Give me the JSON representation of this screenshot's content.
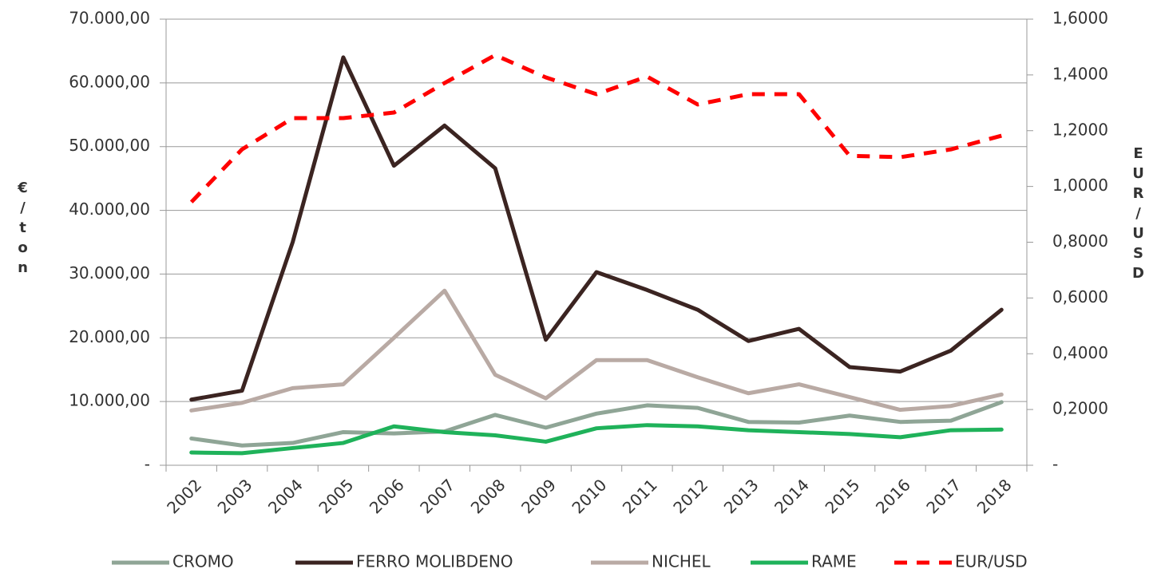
{
  "chart_data": {
    "type": "line",
    "categories": [
      "2002",
      "2003",
      "2004",
      "2005",
      "2006",
      "2007",
      "2008",
      "2009",
      "2010",
      "2011",
      "2012",
      "2013",
      "2014",
      "2015",
      "2016",
      "2017",
      "2018"
    ],
    "ylabel": "€/ton",
    "y2label": "EUR/USD",
    "ylim": [
      0,
      70000
    ],
    "yticks": [
      {
        "value": 0,
        "label": "-"
      },
      {
        "value": 10000,
        "label": "10.000,00"
      },
      {
        "value": 20000,
        "label": "20.000,00"
      },
      {
        "value": 30000,
        "label": "30.000,00"
      },
      {
        "value": 40000,
        "label": "40.000,00"
      },
      {
        "value": 50000,
        "label": "50.000,00"
      },
      {
        "value": 60000,
        "label": "60.000,00"
      },
      {
        "value": 70000,
        "label": "70.000,00"
      }
    ],
    "y2lim": [
      0,
      1.6
    ],
    "y2ticks": [
      {
        "value": 0,
        "label": "-"
      },
      {
        "value": 0.2,
        "label": "0,2000"
      },
      {
        "value": 0.4,
        "label": "0,4000"
      },
      {
        "value": 0.6,
        "label": "0,6000"
      },
      {
        "value": 0.8,
        "label": "0,8000"
      },
      {
        "value": 1.0,
        "label": "1,0000"
      },
      {
        "value": 1.2,
        "label": "1,2000"
      },
      {
        "value": 1.4,
        "label": "1,4000"
      },
      {
        "value": 1.6,
        "label": "1,6000"
      }
    ],
    "grid": true,
    "legend": "bottom",
    "series": [
      {
        "name": "CROMO",
        "color": "#8fa596",
        "values": [
          4200,
          3100,
          3500,
          5200,
          5000,
          5300,
          7900,
          5900,
          8100,
          9400,
          9000,
          6800,
          6700,
          7800,
          6800,
          7000,
          9900
        ]
      },
      {
        "name": "FERRO MOLIBDENO",
        "color": "#3b2421",
        "values": [
          10300,
          11700,
          35000,
          64000,
          47000,
          53300,
          46600,
          19700,
          30300,
          27500,
          24400,
          19500,
          21400,
          15400,
          14700,
          18000,
          24400
        ]
      },
      {
        "name": "NICHEL",
        "color": "#b9aaa4",
        "values": [
          8600,
          9800,
          12100,
          12700,
          20000,
          27400,
          14200,
          10500,
          16500,
          16500,
          13800,
          11300,
          12700,
          10700,
          8700,
          9300,
          11100
        ]
      },
      {
        "name": "RAME",
        "color": "#1fb25a",
        "values": [
          2000,
          1900,
          2700,
          3500,
          6100,
          5200,
          4700,
          3700,
          5800,
          6300,
          6100,
          5500,
          5200,
          4900,
          4400,
          5500,
          5600
        ]
      },
      {
        "name": "EUR/USD",
        "color": "#ff0000",
        "dashed": true,
        "axis": "y2",
        "values": [
          0.944,
          1.133,
          1.245,
          1.245,
          1.265,
          1.371,
          1.471,
          1.391,
          1.331,
          1.394,
          1.294,
          1.331,
          1.331,
          1.11,
          1.105,
          1.133,
          1.182
        ]
      }
    ]
  }
}
